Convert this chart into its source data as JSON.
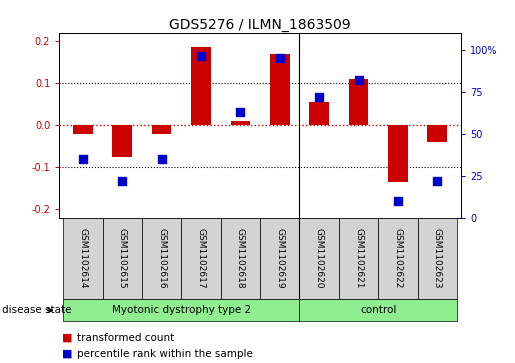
{
  "title": "GDS5276 / ILMN_1863509",
  "samples": [
    "GSM1102614",
    "GSM1102615",
    "GSM1102616",
    "GSM1102617",
    "GSM1102618",
    "GSM1102619",
    "GSM1102620",
    "GSM1102621",
    "GSM1102622",
    "GSM1102623"
  ],
  "transformed_count": [
    -0.02,
    -0.075,
    -0.02,
    0.185,
    0.01,
    0.17,
    0.055,
    0.11,
    -0.135,
    -0.04
  ],
  "percentile_rank": [
    35,
    22,
    35,
    96,
    63,
    95,
    72,
    82,
    10,
    22
  ],
  "group_boundary": 6,
  "group_labels": [
    "Myotonic dystrophy type 2",
    "control"
  ],
  "ylim_left": [
    -0.22,
    0.22
  ],
  "ylim_right": [
    0,
    110
  ],
  "yticks_left": [
    -0.2,
    -0.1,
    0.0,
    0.1,
    0.2
  ],
  "yticks_right": [
    0,
    25,
    50,
    75,
    100
  ],
  "bar_color": "#CC0000",
  "dot_color": "#0000CC",
  "bar_width": 0.5,
  "dot_size": 28,
  "zero_line_color": "#CC0000",
  "grid_color": "#000000",
  "disease_state_label": "disease state",
  "legend_bar_label": "transformed count",
  "legend_dot_label": "percentile rank within the sample",
  "label_box_color": "#D3D3D3",
  "group_box_color": "#90EE90",
  "title_fontsize": 10,
  "tick_fontsize": 7,
  "label_fontsize": 6.5,
  "group_fontsize": 7.5,
  "legend_fontsize": 7.5
}
